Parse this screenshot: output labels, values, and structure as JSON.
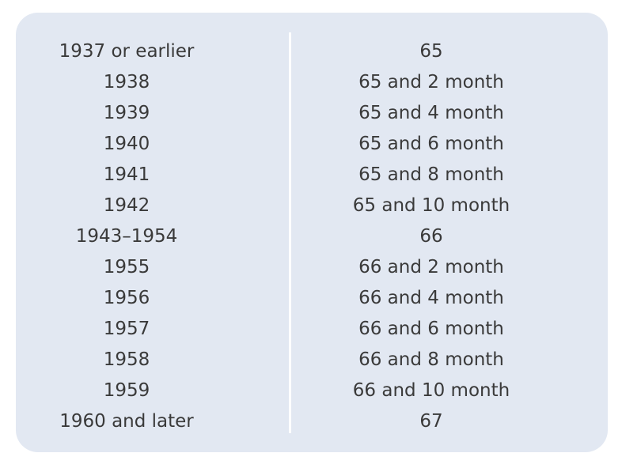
{
  "table": {
    "rows": [
      {
        "birth_year": "1937 or earlier",
        "retirement_age": "65"
      },
      {
        "birth_year": "1938",
        "retirement_age": "65 and 2 month"
      },
      {
        "birth_year": "1939",
        "retirement_age": "65 and 4 month"
      },
      {
        "birth_year": "1940",
        "retirement_age": "65 and 6 month"
      },
      {
        "birth_year": "1941",
        "retirement_age": "65 and 8 month"
      },
      {
        "birth_year": "1942",
        "retirement_age": "65 and 10 month"
      },
      {
        "birth_year": "1943–1954",
        "retirement_age": "66"
      },
      {
        "birth_year": "1955",
        "retirement_age": "66 and 2 month"
      },
      {
        "birth_year": "1956",
        "retirement_age": "66 and 4 month"
      },
      {
        "birth_year": "1957",
        "retirement_age": "66 and 6 month"
      },
      {
        "birth_year": "1958",
        "retirement_age": "66 and 8 month"
      },
      {
        "birth_year": "1959",
        "retirement_age": "66 and 10 month"
      },
      {
        "birth_year": "1960 and later",
        "retirement_age": "67"
      }
    ]
  },
  "colors": {
    "panel_background": "#e2e8f2",
    "divider": "#ffffff",
    "text": "#3a3a3a"
  }
}
